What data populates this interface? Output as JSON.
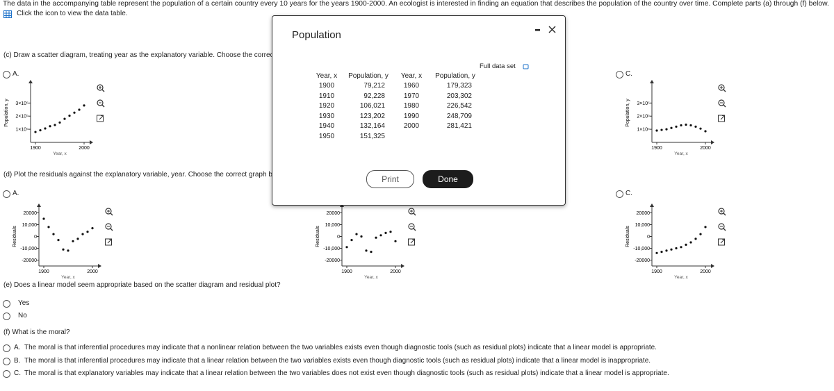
{
  "header": {
    "intro": "The data in the accompanying table represent the population of a certain country every 10 years for the years 1900-2000. An ecologist is interested in finding an equation that describes the population of the country over time. Complete parts (a) through (f) below.",
    "data_link": "Click the icon to view the data table."
  },
  "part_c": {
    "prompt": "(c) Draw a scatter diagram, treating year as the explanatory variable. Choose the correct graph below.",
    "options": [
      {
        "label": "A.",
        "graph": {
          "type": "scatter",
          "y_label": "Population, y",
          "x_label": "Year, x",
          "x": [
            1900,
            1910,
            1920,
            1930,
            1940,
            1950,
            1960,
            1970,
            1980,
            1990,
            2000
          ],
          "y": [
            79212,
            92228,
            106021,
            123202,
            132164,
            151325,
            179323,
            203302,
            226542,
            248709,
            281421
          ],
          "xlim": [
            1890,
            2010
          ],
          "ylim": [
            0,
            450000
          ],
          "xticks": [
            1900,
            2000
          ],
          "yticks": [
            {
              "value": 100000,
              "label": "1×10⁵"
            },
            {
              "value": 200000,
              "label": "2×10⁵"
            },
            {
              "value": 300000,
              "label": "3×10⁵"
            }
          ]
        }
      },
      {
        "label": "C.",
        "graph": {
          "type": "scatter",
          "y_label": "Population, y",
          "x_label": "Year, x",
          "x": [
            1900,
            1910,
            1920,
            1930,
            1940,
            1950,
            1960,
            1970,
            1980,
            1990,
            2000
          ],
          "y": [
            90000,
            95000,
            100000,
            110000,
            120000,
            130000,
            135000,
            130000,
            120000,
            105000,
            85000
          ],
          "xlim": [
            1890,
            2010
          ],
          "ylim": [
            0,
            450000
          ],
          "xticks": [
            1900,
            2000
          ],
          "yticks": [
            {
              "value": 100000,
              "label": "1×10⁵"
            },
            {
              "value": 200000,
              "label": "2×10⁵"
            },
            {
              "value": 300000,
              "label": "3×10⁵"
            }
          ]
        }
      }
    ]
  },
  "part_d": {
    "prompt": "(d) Plot the residuals against the explanatory variable, year. Choose the correct graph below.",
    "options": [
      {
        "label": "A.",
        "graph": {
          "type": "scatter",
          "y_label": "Residuals",
          "x_label": "Year, x",
          "x": [
            1900,
            1910,
            1920,
            1930,
            1940,
            1950,
            1960,
            1970,
            1980,
            1990,
            2000
          ],
          "y": [
            15000,
            8000,
            2000,
            -3000,
            -11000,
            -12000,
            -4000,
            -2000,
            2000,
            4000,
            7000
          ],
          "xlim": [
            1890,
            2010
          ],
          "ylim": [
            -25000,
            25000
          ],
          "xticks": [
            1900,
            2000
          ],
          "yticks": [
            -20000,
            {
              "value": -10000,
              "label": "-10,000"
            },
            0,
            {
              "value": 10000,
              "label": "10,000"
            },
            20000
          ]
        }
      },
      {
        "graph": {
          "type": "scatter",
          "y_label": "Residuals",
          "x_label": "Year, x",
          "x": [
            1900,
            1910,
            1920,
            1930,
            1940,
            1950,
            1960,
            1970,
            1980,
            1990,
            2000
          ],
          "y": [
            -9000,
            -3000,
            2000,
            0,
            -12000,
            -13000,
            -1000,
            1000,
            3000,
            4000,
            -4000
          ],
          "xlim": [
            1890,
            2010
          ],
          "ylim": [
            -25000,
            25000
          ],
          "xticks": [
            1900,
            2000
          ],
          "yticks": [
            -20000,
            {
              "value": -10000,
              "label": "-10,000"
            },
            0,
            {
              "value": 10000,
              "label": "10,000"
            },
            20000
          ]
        }
      },
      {
        "label": "C.",
        "graph": {
          "type": "scatter",
          "y_label": "Residuals",
          "x_label": "Year, x",
          "x": [
            1900,
            1910,
            1920,
            1930,
            1940,
            1950,
            1960,
            1970,
            1980,
            1990,
            2000
          ],
          "y": [
            -14000,
            -13000,
            -12000,
            -11000,
            -10000,
            -9000,
            -7000,
            -5000,
            -2000,
            2000,
            8000
          ],
          "xlim": [
            1890,
            2010
          ],
          "ylim": [
            -25000,
            25000
          ],
          "xticks": [
            1900,
            2000
          ],
          "yticks": [
            -20000,
            {
              "value": -10000,
              "label": "-10,000"
            },
            0,
            {
              "value": 10000,
              "label": "10,000"
            },
            20000
          ]
        }
      }
    ]
  },
  "part_e": {
    "prompt": "(e) Does a linear model seem appropriate based on the scatter diagram and residual plot?",
    "options": [
      "Yes",
      "No"
    ]
  },
  "part_f": {
    "prompt": "(f) What is the moral?",
    "options": [
      {
        "label": "A.",
        "text": "The moral is that inferential procedures may indicate that a nonlinear relation between the two variables exists even though diagnostic tools (such as residual plots) indicate that a linear model is appropriate."
      },
      {
        "label": "B.",
        "text": "The moral is that inferential procedures may indicate that a linear relation between the two variables exists even though diagnostic tools (such as residual plots) indicate that a linear model is inappropriate."
      },
      {
        "label": "C.",
        "text": "The moral is that explanatory variables may indicate that a linear relation between the two variables does not exist even though diagnostic tools (such as residual plots) indicate that a linear model is appropriate."
      }
    ]
  },
  "dialog": {
    "title": "Population",
    "full_data_set": "Full data set",
    "columns": [
      "Year, x",
      "Population, y",
      "Year, x",
      "Population, y"
    ],
    "rows": [
      [
        "1900",
        "79,212",
        "1960",
        "179,323"
      ],
      [
        "1910",
        "92,228",
        "1970",
        "203,302"
      ],
      [
        "1920",
        "106,021",
        "1980",
        "226,542"
      ],
      [
        "1930",
        "123,202",
        "1990",
        "248,709"
      ],
      [
        "1940",
        "132,164",
        "2000",
        "281,421"
      ],
      [
        "1950",
        "151,325"
      ]
    ],
    "print": "Print",
    "done": "Done"
  }
}
